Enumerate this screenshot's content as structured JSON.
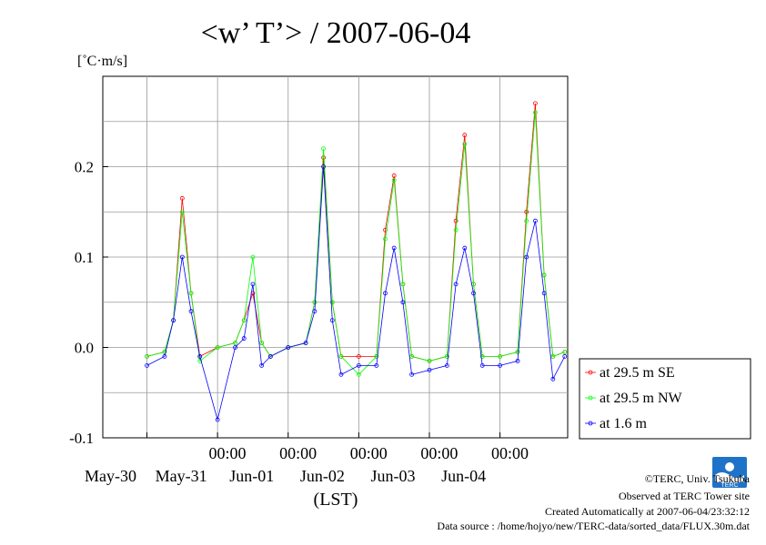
{
  "chart_data": {
    "type": "line",
    "title": "<w’ T’> / 2007-06-04",
    "ylabel": "[˚C·m/s]",
    "xlabel": "(LST)",
    "ylim": [
      -0.1,
      0.3
    ],
    "xlim": [
      "2007-05-29T09:00",
      "2007-06-04T23:00"
    ],
    "y_ticks": [
      "0.2",
      "0.1",
      "0.0",
      "-0.1"
    ],
    "y_tick_values": [
      0.2,
      0.1,
      0.0,
      -0.1
    ],
    "x_time_labels": [
      "00:00",
      "00:00",
      "00:00",
      "00:00",
      "00:00"
    ],
    "x_date_labels": [
      "May-30",
      "May-31",
      "Jun-01",
      "Jun-02",
      "Jun-03",
      "Jun-04"
    ],
    "grid": true,
    "legend_position": "right",
    "series": [
      {
        "name": "at 29.5 m SE",
        "color": "#ff0000",
        "x": [
          "2007-05-30T00:00",
          "2007-05-30T06:00",
          "2007-05-30T09:00",
          "2007-05-30T12:00",
          "2007-05-30T15:00",
          "2007-05-30T18:00",
          "2007-05-31T00:00",
          "2007-05-31T06:00",
          "2007-05-31T09:00",
          "2007-05-31T12:00",
          "2007-05-31T15:00",
          "2007-05-31T18:00",
          "2007-06-01T00:00",
          "2007-06-01T06:00",
          "2007-06-01T09:00",
          "2007-06-01T12:00",
          "2007-06-01T15:00",
          "2007-06-01T18:00",
          "2007-06-02T00:00",
          "2007-06-02T06:00",
          "2007-06-02T09:00",
          "2007-06-02T12:00",
          "2007-06-02T15:00",
          "2007-06-02T18:00",
          "2007-06-03T00:00",
          "2007-06-03T06:00",
          "2007-06-03T09:00",
          "2007-06-03T12:00",
          "2007-06-03T15:00",
          "2007-06-03T18:00",
          "2007-06-04T00:00",
          "2007-06-04T06:00",
          "2007-06-04T09:00",
          "2007-06-04T12:00",
          "2007-06-04T15:00",
          "2007-06-04T18:00",
          "2007-06-04T22:00"
        ],
        "y": [
          -0.01,
          -0.005,
          0.03,
          0.165,
          0.06,
          -0.01,
          0.0,
          0.005,
          0.03,
          0.06,
          0.005,
          -0.01,
          0.0,
          0.005,
          0.05,
          0.21,
          0.05,
          -0.01,
          -0.01,
          -0.01,
          0.13,
          0.19,
          0.07,
          -0.01,
          -0.015,
          -0.01,
          0.14,
          0.235,
          0.07,
          -0.01,
          -0.01,
          -0.005,
          0.15,
          0.27,
          0.08,
          -0.01,
          -0.005
        ]
      },
      {
        "name": "at 29.5 m NW",
        "color": "#00ff00",
        "x": [
          "2007-05-30T00:00",
          "2007-05-30T06:00",
          "2007-05-30T09:00",
          "2007-05-30T12:00",
          "2007-05-30T15:00",
          "2007-05-30T18:00",
          "2007-05-31T00:00",
          "2007-05-31T06:00",
          "2007-05-31T09:00",
          "2007-05-31T12:00",
          "2007-05-31T15:00",
          "2007-05-31T18:00",
          "2007-06-01T00:00",
          "2007-06-01T06:00",
          "2007-06-01T09:00",
          "2007-06-01T12:00",
          "2007-06-01T15:00",
          "2007-06-01T18:00",
          "2007-06-02T00:00",
          "2007-06-02T06:00",
          "2007-06-02T09:00",
          "2007-06-02T12:00",
          "2007-06-02T15:00",
          "2007-06-02T18:00",
          "2007-06-03T00:00",
          "2007-06-03T06:00",
          "2007-06-03T09:00",
          "2007-06-03T12:00",
          "2007-06-03T15:00",
          "2007-06-03T18:00",
          "2007-06-04T00:00",
          "2007-06-04T06:00",
          "2007-06-04T09:00",
          "2007-06-04T12:00",
          "2007-06-04T15:00",
          "2007-06-04T18:00",
          "2007-06-04T22:00"
        ],
        "y": [
          -0.01,
          -0.005,
          0.03,
          0.15,
          0.06,
          -0.015,
          0.0,
          0.005,
          0.03,
          0.1,
          0.005,
          -0.01,
          0.0,
          0.005,
          0.05,
          0.22,
          0.05,
          -0.01,
          -0.03,
          -0.01,
          0.12,
          0.185,
          0.07,
          -0.01,
          -0.015,
          -0.01,
          0.13,
          0.225,
          0.07,
          -0.01,
          -0.01,
          -0.005,
          0.14,
          0.26,
          0.08,
          -0.01,
          -0.005
        ]
      },
      {
        "name": "at 1.6 m",
        "color": "#0000ff",
        "x": [
          "2007-05-30T00:00",
          "2007-05-30T06:00",
          "2007-05-30T09:00",
          "2007-05-30T12:00",
          "2007-05-30T15:00",
          "2007-05-30T18:00",
          "2007-05-31T00:00",
          "2007-05-31T06:00",
          "2007-05-31T09:00",
          "2007-05-31T12:00",
          "2007-05-31T15:00",
          "2007-05-31T18:00",
          "2007-06-01T00:00",
          "2007-06-01T06:00",
          "2007-06-01T09:00",
          "2007-06-01T12:00",
          "2007-06-01T15:00",
          "2007-06-01T18:00",
          "2007-06-02T00:00",
          "2007-06-02T06:00",
          "2007-06-02T09:00",
          "2007-06-02T12:00",
          "2007-06-02T15:00",
          "2007-06-02T18:00",
          "2007-06-03T00:00",
          "2007-06-03T06:00",
          "2007-06-03T09:00",
          "2007-06-03T12:00",
          "2007-06-03T15:00",
          "2007-06-03T18:00",
          "2007-06-04T00:00",
          "2007-06-04T06:00",
          "2007-06-04T09:00",
          "2007-06-04T12:00",
          "2007-06-04T15:00",
          "2007-06-04T18:00",
          "2007-06-04T22:00"
        ],
        "y": [
          -0.02,
          -0.01,
          0.03,
          0.1,
          0.04,
          -0.01,
          -0.08,
          0.0,
          0.01,
          0.07,
          -0.02,
          -0.01,
          0.0,
          0.005,
          0.04,
          0.2,
          0.03,
          -0.03,
          -0.02,
          -0.02,
          0.06,
          0.11,
          0.05,
          -0.03,
          -0.025,
          -0.02,
          0.07,
          0.11,
          0.06,
          -0.02,
          -0.02,
          -0.015,
          0.1,
          0.14,
          0.06,
          -0.035,
          -0.01
        ]
      }
    ]
  },
  "footer": {
    "logo_text": "TERC",
    "copyright": "©TERC, Univ. Tsukuba",
    "observed": "Observed at TERC Tower site",
    "created": "Created Automatically at 2007-06-04/23:32:12",
    "source": "Data source : /home/hojyo/new/TERC-data/sorted_data/FLUX.30m.dat"
  }
}
